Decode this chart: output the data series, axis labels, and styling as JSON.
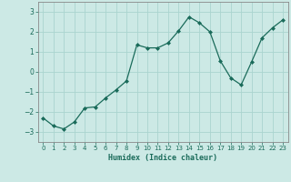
{
  "x": [
    0,
    1,
    2,
    3,
    4,
    5,
    6,
    7,
    8,
    9,
    10,
    11,
    12,
    13,
    14,
    15,
    16,
    17,
    18,
    19,
    20,
    21,
    22,
    23
  ],
  "y": [
    -2.3,
    -2.7,
    -2.85,
    -2.5,
    -1.8,
    -1.75,
    -1.3,
    -0.9,
    -0.45,
    1.35,
    1.2,
    1.2,
    1.45,
    2.05,
    2.75,
    2.45,
    2.0,
    0.55,
    -0.3,
    -0.65,
    0.5,
    1.7,
    2.2,
    2.6
  ],
  "line_color": "#1a6b5a",
  "marker": "D",
  "marker_size": 2,
  "bg_color": "#cce9e5",
  "grid_color": "#aad4cf",
  "xlabel": "Humidex (Indice chaleur)",
  "ylim": [
    -3.5,
    3.5
  ],
  "xlim": [
    -0.5,
    23.5
  ],
  "yticks": [
    -3,
    -2,
    -1,
    0,
    1,
    2,
    3
  ],
  "xticks": [
    0,
    1,
    2,
    3,
    4,
    5,
    6,
    7,
    8,
    9,
    10,
    11,
    12,
    13,
    14,
    15,
    16,
    17,
    18,
    19,
    20,
    21,
    22,
    23
  ],
  "tick_color": "#1a6b5a",
  "spine_color": "#888888"
}
